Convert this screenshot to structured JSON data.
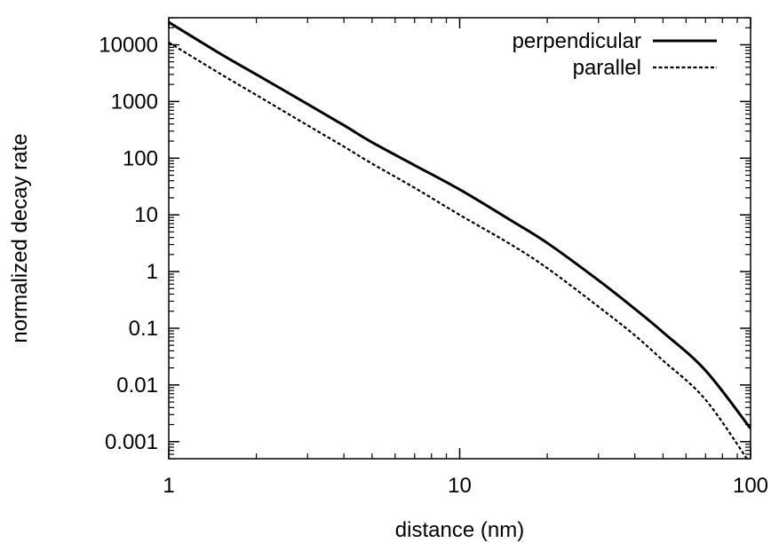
{
  "chart_data": {
    "type": "line",
    "xlabel": "distance (nm)",
    "ylabel": "normalized decay rate",
    "x_scale": "log",
    "y_scale": "log",
    "xlim": [
      1,
      100
    ],
    "ylim": [
      0.0005,
      30000
    ],
    "x_ticks": [
      {
        "value": 1,
        "label": "1"
      },
      {
        "value": 10,
        "label": "10"
      },
      {
        "value": 100,
        "label": "100"
      }
    ],
    "y_ticks": [
      {
        "value": 0.001,
        "label": "0.001"
      },
      {
        "value": 0.01,
        "label": "0.01"
      },
      {
        "value": 0.1,
        "label": "0.1"
      },
      {
        "value": 1,
        "label": "1"
      },
      {
        "value": 10,
        "label": "10"
      },
      {
        "value": 100,
        "label": "100"
      },
      {
        "value": 1000,
        "label": "1000"
      },
      {
        "value": 10000,
        "label": "10000"
      }
    ],
    "grid": false,
    "legend_position": "top-right",
    "series": [
      {
        "name": "perpendicular",
        "style": "solid",
        "x": [
          1,
          1.5,
          2,
          3,
          4,
          5,
          7,
          10,
          15,
          20,
          30,
          40,
          50,
          70,
          100
        ],
        "y": [
          25000,
          7000,
          3000,
          900,
          380,
          190,
          75,
          28,
          8,
          3.2,
          0.7,
          0.22,
          0.085,
          0.018,
          0.0017
        ]
      },
      {
        "name": "parallel",
        "style": "dashed",
        "x": [
          1,
          1.5,
          2,
          3,
          4,
          5,
          7,
          10,
          15,
          20,
          30,
          40,
          50,
          70,
          100
        ],
        "y": [
          11000,
          3100,
          1300,
          380,
          160,
          80,
          30,
          10,
          3,
          1.15,
          0.24,
          0.075,
          0.027,
          0.0055,
          0.0004
        ]
      }
    ]
  }
}
